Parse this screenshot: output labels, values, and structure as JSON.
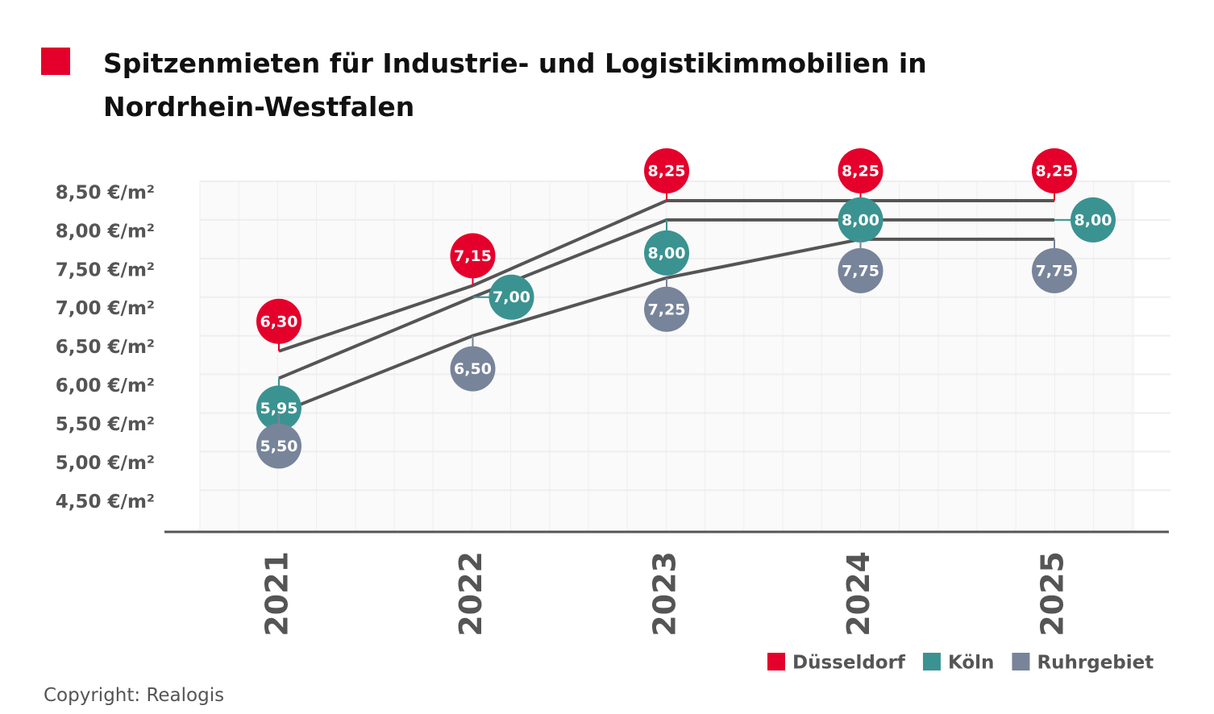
{
  "chart_data": {
    "type": "line",
    "title": "Spitzenmieten für Industrie- und Logistikimmobilien in Nordrhein-Westfalen",
    "categories": [
      "2021",
      "2022",
      "2023",
      "2024",
      "2025"
    ],
    "series": [
      {
        "name": "Düsseldorf",
        "color": "#e4002b",
        "values": [
          6.3,
          7.15,
          8.25,
          8.25,
          8.25
        ],
        "value_labels": [
          "6,30",
          "7,15",
          "8,25",
          "8,25",
          "8,25"
        ]
      },
      {
        "name": "Köln",
        "color": "#3a9391",
        "values": [
          5.95,
          7.0,
          8.0,
          8.0,
          8.0
        ],
        "value_labels": [
          "5,95",
          "7,00",
          "8,00",
          "8,00",
          "8,00"
        ]
      },
      {
        "name": "Ruhrgebiet",
        "color": "#77849a",
        "values": [
          5.5,
          6.5,
          7.25,
          7.75,
          7.75
        ],
        "value_labels": [
          "5,50",
          "6,50",
          "7,25",
          "7,75",
          "7,75"
        ]
      }
    ],
    "ylim": [
      3.96,
      8.5
    ],
    "yticks": [
      {
        "value": 8.5,
        "label": "8,50 €/m²"
      },
      {
        "value": 8.0,
        "label": "8,00 €/m²"
      },
      {
        "value": 7.5,
        "label": "7,50 €/m²"
      },
      {
        "value": 7.0,
        "label": "7,00 €/m²"
      },
      {
        "value": 6.5,
        "label": "6,50 €/m²"
      },
      {
        "value": 6.0,
        "label": "6,00 €/m²"
      },
      {
        "value": 5.5,
        "label": "5,50 €/m²"
      },
      {
        "value": 5.0,
        "label": "5,00 €/m²"
      },
      {
        "value": 4.5,
        "label": "4,50 €/m²"
      }
    ],
    "grid": true,
    "legend": "bottom-right",
    "footer": "Copyright: Realogis"
  }
}
